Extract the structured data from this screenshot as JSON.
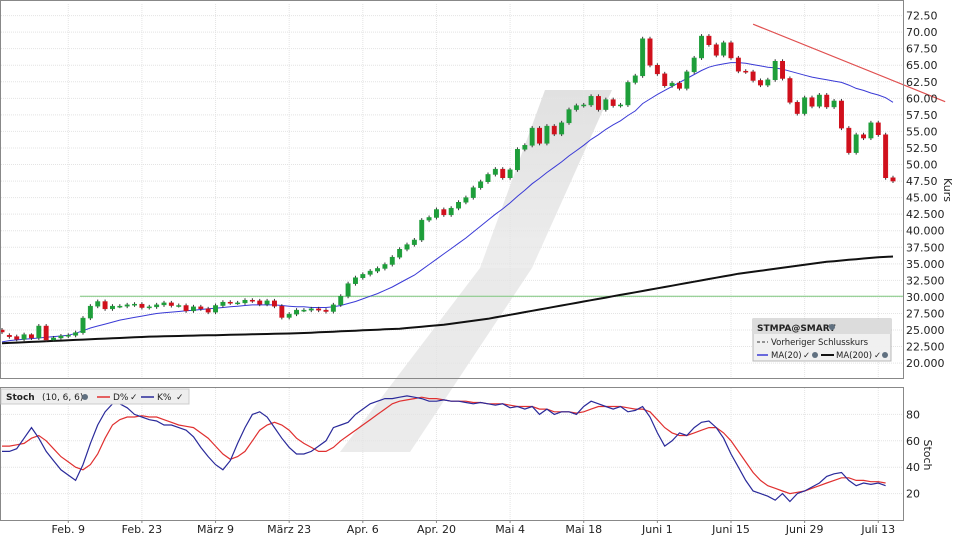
{
  "chart_data": {
    "type": "candlestick",
    "symbol_label": "STMPA@SMART",
    "legend_items": [
      "Vorheriger Schlusskurs",
      "MA(20)",
      "MA(200)"
    ],
    "price_axis": {
      "label": "Kurs",
      "ylim": [
        17.75,
        74.25
      ],
      "ticks": [
        "72.50",
        "70.00",
        "67.50",
        "65.00",
        "62.50",
        "60.00",
        "57.50",
        "55.00",
        "52.50",
        "50.00",
        "47.50",
        "45.00",
        "42.500",
        "40.000",
        "37.500",
        "35.000",
        "32.500",
        "30.000",
        "27.500",
        "25.000",
        "22.500",
        "20.000"
      ],
      "tick_values": [
        72.5,
        70,
        67.5,
        65,
        62.5,
        60,
        57.5,
        55,
        52.5,
        50,
        47.5,
        45,
        42.5,
        40,
        37.5,
        35,
        32.5,
        30,
        27.5,
        25,
        22.5,
        20
      ]
    },
    "x_axis": {
      "labels": [
        "Feb. 9",
        "Feb. 23",
        "März 9",
        "März 23",
        "Apr. 6",
        "Apr. 20",
        "Mai 4",
        "Mai 18",
        "Juni 1",
        "Juni 15",
        "Juni 29",
        "Juli 13"
      ],
      "label_index": [
        9,
        19,
        29,
        39,
        49,
        59,
        69,
        79,
        89,
        99,
        109,
        119
      ]
    },
    "previous_close": 30.1,
    "candles_open": [
      25.0,
      24.2,
      24.0,
      23.6,
      24.3,
      23.8,
      25.6,
      23.5,
      23.8,
      24.1,
      24.2,
      24.6,
      26.8,
      28.6,
      29.3,
      28.2,
      28.6,
      28.6,
      28.8,
      28.9,
      28.4,
      28.5,
      28.8,
      29.1,
      28.7,
      28.7,
      27.9,
      28.5,
      28.2,
      27.7,
      28.7,
      29.2,
      29.1,
      29.1,
      29.5,
      29.4,
      28.9,
      29.4,
      28.6,
      26.9,
      27.4,
      28.0,
      28.0,
      28.2,
      28.0,
      27.8,
      28.8,
      30.1,
      32.0,
      32.9,
      33.4,
      33.9,
      34.3,
      34.9,
      36.0,
      37.2,
      37.9,
      38.6,
      41.6,
      42.0,
      43.2,
      42.4,
      43.4,
      44.3,
      45.0,
      46.5,
      47.4,
      48.5,
      49.3,
      48.0,
      49.2,
      52.3,
      52.9,
      55.5,
      53.2,
      55.8,
      54.6,
      56.3,
      58.3,
      58.9,
      59.0,
      60.3,
      58.3,
      59.8,
      58.9,
      59.0,
      62.4,
      63.4,
      69.0,
      65.0,
      63.7,
      61.9,
      62.3,
      61.5,
      64.0,
      66.1,
      69.4,
      68.1,
      66.5,
      68.4,
      66.1,
      64.1,
      64.0,
      62.7,
      62.0,
      62.8,
      65.6,
      63.0,
      59.4,
      57.7,
      60.1,
      58.8,
      60.5,
      58.7,
      59.6,
      55.5,
      51.8,
      54.5,
      54.0,
      56.3,
      54.5,
      48.0
    ],
    "candles_close": [
      24.7,
      24.0,
      23.6,
      24.3,
      23.8,
      25.6,
      23.5,
      23.8,
      24.1,
      24.2,
      24.6,
      26.8,
      28.6,
      29.3,
      28.2,
      28.6,
      28.6,
      28.8,
      28.9,
      28.4,
      28.5,
      28.8,
      29.1,
      28.7,
      28.7,
      27.9,
      28.5,
      28.2,
      27.7,
      28.7,
      29.2,
      29.1,
      29.1,
      29.5,
      29.4,
      28.9,
      29.4,
      28.6,
      26.9,
      27.4,
      28.0,
      28.0,
      28.2,
      28.0,
      27.8,
      28.8,
      30.1,
      32.0,
      32.9,
      33.4,
      33.9,
      34.3,
      34.9,
      36.0,
      37.2,
      37.9,
      38.6,
      41.6,
      42.0,
      43.2,
      42.4,
      43.4,
      44.3,
      45.0,
      46.5,
      47.4,
      48.5,
      49.3,
      48.0,
      49.2,
      52.3,
      52.9,
      55.5,
      53.2,
      55.8,
      54.6,
      56.3,
      58.3,
      58.9,
      59.0,
      60.3,
      58.3,
      59.8,
      58.9,
      59.0,
      62.4,
      63.4,
      69.0,
      65.0,
      63.7,
      61.9,
      62.3,
      61.5,
      64.0,
      66.1,
      69.4,
      68.1,
      66.5,
      68.4,
      66.1,
      64.1,
      64.0,
      62.7,
      62.0,
      62.8,
      65.6,
      63.0,
      59.4,
      57.7,
      60.1,
      58.8,
      60.5,
      58.7,
      59.6,
      55.5,
      51.8,
      54.5,
      54.0,
      56.3,
      54.5,
      48.0,
      47.5
    ],
    "candles_high": [
      25.3,
      24.5,
      24.3,
      24.6,
      24.5,
      25.9,
      25.9,
      24.1,
      24.4,
      24.5,
      24.9,
      27.1,
      28.9,
      29.6,
      29.6,
      28.9,
      28.9,
      29.1,
      29.2,
      29.2,
      28.8,
      29.1,
      29.4,
      29.4,
      29.0,
      29.0,
      28.8,
      28.8,
      28.5,
      29.0,
      29.5,
      29.5,
      29.4,
      29.8,
      29.8,
      29.7,
      29.7,
      29.7,
      28.9,
      27.7,
      28.3,
      28.3,
      28.5,
      28.5,
      28.3,
      29.1,
      30.4,
      32.3,
      33.2,
      33.7,
      34.2,
      34.6,
      35.2,
      36.3,
      37.5,
      38.2,
      38.9,
      41.9,
      42.3,
      43.5,
      43.5,
      43.7,
      44.6,
      45.3,
      46.8,
      47.7,
      48.8,
      49.6,
      49.6,
      49.5,
      52.6,
      53.2,
      55.8,
      55.8,
      56.1,
      56.1,
      56.6,
      58.6,
      59.2,
      59.3,
      60.6,
      60.6,
      60.1,
      60.1,
      59.3,
      62.7,
      63.7,
      69.3,
      69.3,
      65.3,
      64.0,
      62.6,
      62.6,
      64.3,
      66.4,
      69.7,
      69.7,
      68.4,
      68.7,
      68.7,
      66.4,
      64.4,
      64.3,
      63.0,
      63.1,
      65.9,
      65.9,
      63.3,
      59.7,
      60.4,
      60.4,
      60.8,
      60.8,
      59.9,
      59.9,
      55.8,
      54.8,
      54.8,
      56.6,
      56.6,
      54.8,
      48.3
    ],
    "candles_low": [
      24.4,
      23.7,
      23.3,
      23.3,
      23.5,
      23.5,
      23.2,
      23.2,
      23.5,
      23.8,
      23.9,
      24.3,
      26.5,
      28.3,
      27.9,
      27.9,
      28.3,
      28.3,
      28.5,
      28.1,
      28.1,
      28.2,
      28.5,
      28.4,
      28.4,
      27.6,
      27.6,
      27.9,
      27.4,
      27.4,
      28.4,
      28.8,
      28.8,
      28.8,
      29.1,
      28.6,
      28.6,
      28.3,
      26.6,
      26.6,
      27.1,
      27.7,
      27.7,
      27.7,
      27.5,
      27.5,
      28.5,
      29.8,
      31.7,
      32.6,
      33.1,
      33.6,
      34.0,
      34.6,
      35.7,
      36.9,
      37.6,
      38.3,
      41.3,
      41.7,
      42.1,
      42.1,
      43.1,
      44.0,
      44.7,
      46.2,
      47.1,
      48.2,
      47.7,
      47.7,
      48.9,
      52.0,
      52.6,
      52.9,
      52.9,
      54.3,
      54.3,
      56.0,
      58.0,
      58.6,
      58.7,
      58.0,
      58.0,
      58.6,
      58.6,
      58.7,
      62.1,
      63.1,
      64.7,
      63.4,
      61.6,
      61.6,
      61.2,
      61.2,
      63.7,
      65.8,
      67.8,
      66.2,
      66.2,
      65.8,
      63.8,
      63.7,
      62.4,
      61.7,
      61.7,
      62.5,
      62.7,
      59.1,
      57.4,
      57.4,
      58.5,
      58.5,
      58.4,
      58.4,
      55.2,
      51.5,
      51.5,
      53.7,
      53.7,
      54.2,
      47.7,
      47.2
    ],
    "ma20": [
      23.2,
      23.4,
      23.5,
      23.6,
      23.7,
      23.8,
      23.9,
      24.0,
      24.1,
      24.2,
      24.5,
      24.9,
      25.3,
      25.6,
      25.9,
      26.2,
      26.5,
      26.7,
      26.9,
      27.1,
      27.3,
      27.5,
      27.6,
      27.7,
      27.8,
      27.9,
      28.0,
      28.1,
      28.2,
      28.3,
      28.4,
      28.5,
      28.6,
      28.7,
      28.8,
      28.8,
      28.8,
      28.8,
      28.7,
      28.6,
      28.5,
      28.5,
      28.4,
      28.4,
      28.4,
      28.5,
      28.7,
      29.0,
      29.3,
      29.7,
      30.1,
      30.5,
      31.0,
      31.5,
      32.1,
      32.7,
      33.3,
      34.1,
      34.9,
      35.7,
      36.5,
      37.3,
      38.1,
      38.9,
      39.8,
      40.7,
      41.6,
      42.5,
      43.3,
      44.2,
      45.2,
      46.1,
      47.1,
      47.9,
      48.8,
      49.6,
      50.4,
      51.3,
      52.1,
      52.9,
      53.8,
      54.5,
      55.3,
      56.0,
      56.6,
      57.4,
      58.1,
      59.2,
      59.9,
      60.6,
      61.2,
      61.8,
      62.4,
      63.0,
      63.6,
      64.2,
      64.7,
      65.0,
      65.2,
      65.4,
      65.4,
      65.3,
      65.1,
      64.9,
      64.7,
      64.6,
      64.4,
      64.1,
      63.8,
      63.5,
      63.2,
      63.0,
      62.8,
      62.6,
      62.4,
      62.0,
      61.5,
      61.2,
      60.8,
      60.5,
      60.1,
      59.4
    ],
    "ma200": [
      23.0,
      23.05,
      23.1,
      23.15,
      23.2,
      23.25,
      23.3,
      23.35,
      23.4,
      23.45,
      23.5,
      23.55,
      23.6,
      23.65,
      23.7,
      23.75,
      23.8,
      23.85,
      23.9,
      23.95,
      24.0,
      24.02,
      24.05,
      24.08,
      24.1,
      24.12,
      24.15,
      24.18,
      24.2,
      24.22,
      24.25,
      24.28,
      24.3,
      24.32,
      24.35,
      24.38,
      24.4,
      24.42,
      24.45,
      24.48,
      24.5,
      24.55,
      24.6,
      24.65,
      24.7,
      24.75,
      24.8,
      24.85,
      24.9,
      24.95,
      25.0,
      25.05,
      25.1,
      25.15,
      25.2,
      25.3,
      25.4,
      25.5,
      25.6,
      25.7,
      25.8,
      25.95,
      26.1,
      26.25,
      26.4,
      26.55,
      26.7,
      26.9,
      27.1,
      27.3,
      27.5,
      27.7,
      27.9,
      28.1,
      28.3,
      28.5,
      28.7,
      28.9,
      29.1,
      29.3,
      29.5,
      29.7,
      29.9,
      30.1,
      30.3,
      30.5,
      30.7,
      30.9,
      31.1,
      31.3,
      31.5,
      31.7,
      31.9,
      32.1,
      32.3,
      32.5,
      32.7,
      32.9,
      33.1,
      33.3,
      33.5,
      33.65,
      33.8,
      33.95,
      34.1,
      34.25,
      34.4,
      34.55,
      34.7,
      34.85,
      35.0,
      35.15,
      35.3,
      35.4,
      35.5,
      35.6,
      35.7,
      35.8,
      35.9,
      36.0,
      36.05,
      36.1
    ],
    "trendline": {
      "x": [
        102,
        127
      ],
      "y": [
        71.2,
        59.5
      ]
    },
    "stoch_panel": {
      "title": "Stoch",
      "params": "(10, 6, 6)",
      "legend_d": "D%",
      "legend_k": "K%",
      "axis_label": "Stoch",
      "ylim": [
        0,
        100
      ],
      "ticks": [
        "80",
        "60",
        "40",
        "20"
      ],
      "tick_values": [
        80,
        60,
        40,
        20
      ],
      "k": [
        52,
        52,
        54,
        62,
        70,
        62,
        52,
        45,
        38,
        34,
        30,
        42,
        58,
        72,
        82,
        88,
        88,
        85,
        80,
        78,
        76,
        75,
        72,
        72,
        70,
        68,
        63,
        55,
        48,
        42,
        38,
        45,
        58,
        70,
        80,
        82,
        78,
        70,
        62,
        55,
        50,
        50,
        52,
        56,
        60,
        70,
        72,
        74,
        80,
        84,
        88,
        90,
        92,
        92,
        93,
        94,
        93,
        92,
        90,
        90,
        91,
        90,
        90,
        89,
        88,
        89,
        88,
        87,
        88,
        85,
        86,
        84,
        86,
        80,
        84,
        80,
        82,
        82,
        80,
        86,
        90,
        88,
        86,
        84,
        86,
        82,
        83,
        86,
        78,
        66,
        56,
        60,
        66,
        64,
        70,
        74,
        75,
        70,
        62,
        50,
        40,
        30,
        22,
        20,
        18,
        15,
        20,
        14,
        20,
        22,
        25,
        28,
        33,
        35,
        36,
        30,
        26,
        28,
        27,
        28,
        26
      ],
      "d": [
        56,
        56,
        57,
        58,
        62,
        64,
        60,
        54,
        48,
        44,
        40,
        38,
        42,
        50,
        62,
        72,
        76,
        78,
        78,
        79,
        78,
        78,
        76,
        74,
        72,
        71,
        70,
        66,
        62,
        56,
        50,
        46,
        48,
        52,
        60,
        68,
        72,
        74,
        72,
        68,
        62,
        58,
        55,
        52,
        52,
        55,
        60,
        64,
        68,
        72,
        76,
        80,
        84,
        88,
        90,
        91,
        92,
        93,
        92,
        92,
        91,
        90,
        90,
        90,
        89,
        89,
        88,
        88,
        88,
        87,
        86,
        86,
        86,
        84,
        84,
        82,
        82,
        82,
        81,
        82,
        84,
        86,
        86,
        86,
        86,
        85,
        84,
        84,
        82,
        76,
        70,
        66,
        64,
        64,
        66,
        68,
        70,
        70,
        66,
        60,
        52,
        44,
        36,
        30,
        26,
        24,
        22,
        20,
        21,
        22,
        24,
        26,
        28,
        30,
        32,
        32,
        30,
        30,
        29,
        29,
        28
      ]
    }
  }
}
